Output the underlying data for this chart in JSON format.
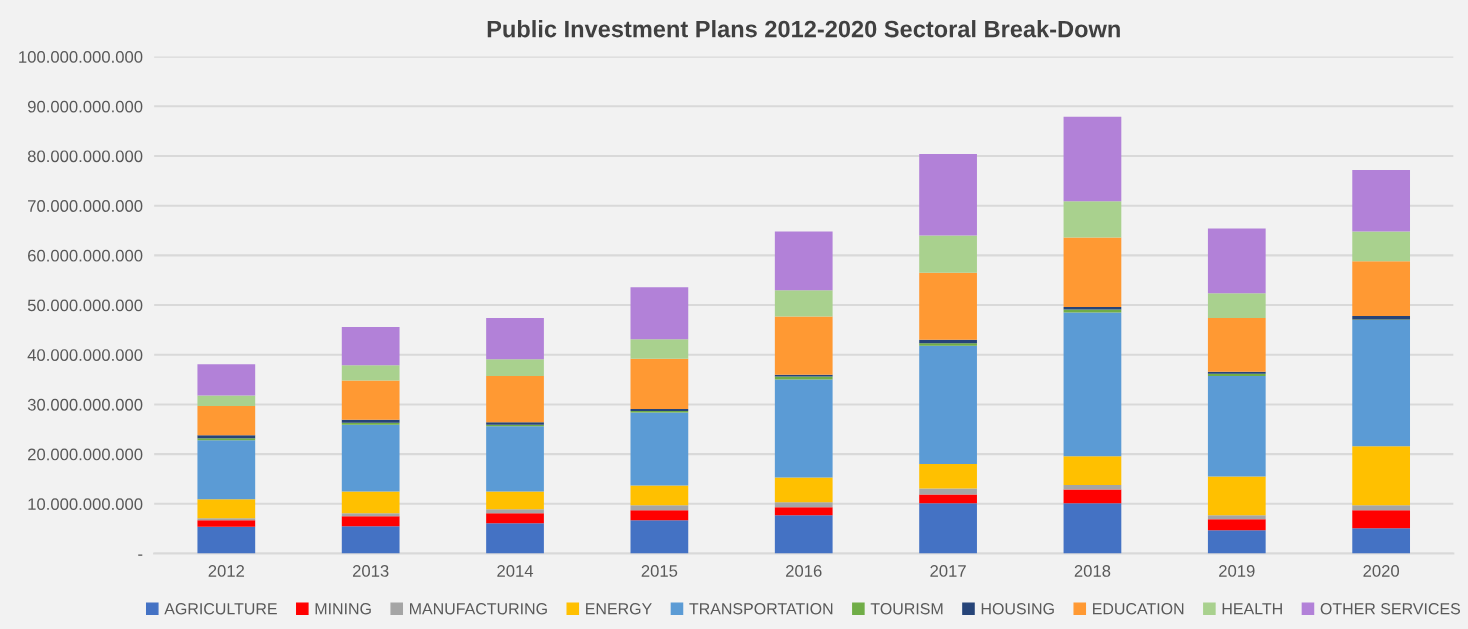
{
  "chart_data": {
    "type": "bar",
    "title": "Public Investment Plans 2012-2020 Sectoral Break-Down",
    "stacked": true,
    "grid": "y",
    "legend": "bottom",
    "categories": [
      "2012",
      "2013",
      "2014",
      "2015",
      "2016",
      "2017",
      "2018",
      "2019",
      "2020"
    ],
    "ylim": [
      0,
      100000000000
    ],
    "yticks": [
      {
        "value": 0,
        "label": "-"
      },
      {
        "value": 10000000000,
        "label": "10.000.000.000"
      },
      {
        "value": 20000000000,
        "label": "20.000.000.000"
      },
      {
        "value": 30000000000,
        "label": "30.000.000.000"
      },
      {
        "value": 40000000000,
        "label": "40.000.000.000"
      },
      {
        "value": 50000000000,
        "label": "50.000.000.000"
      },
      {
        "value": 60000000000,
        "label": "60.000.000.000"
      },
      {
        "value": 70000000000,
        "label": "70.000.000.000"
      },
      {
        "value": 80000000000,
        "label": "80.000.000.000"
      },
      {
        "value": 90000000000,
        "label": "90.000.000.000"
      },
      {
        "value": 100000000000,
        "label": "100.000.000.000"
      }
    ],
    "series": [
      {
        "name": "AGRICULTURE",
        "color": "#4472c4",
        "values": [
          5400000000,
          5500000000,
          6100000000,
          6700000000,
          7700000000,
          10100000000,
          10100000000,
          4700000000,
          5100000000
        ]
      },
      {
        "name": "MINING",
        "color": "#ff0000",
        "values": [
          1300000000,
          2000000000,
          2000000000,
          2000000000,
          1600000000,
          1800000000,
          2800000000,
          2200000000,
          3600000000
        ]
      },
      {
        "name": "MANUFACTURING",
        "color": "#a5a5a5",
        "values": [
          400000000,
          600000000,
          800000000,
          1000000000,
          1000000000,
          1200000000,
          900000000,
          800000000,
          1000000000
        ]
      },
      {
        "name": "ENERGY",
        "color": "#ffc000",
        "values": [
          3800000000,
          4400000000,
          3600000000,
          4000000000,
          5000000000,
          4900000000,
          5800000000,
          7800000000,
          11900000000
        ]
      },
      {
        "name": "TRANSPORTATION",
        "color": "#5b9bd5",
        "values": [
          11900000000,
          13400000000,
          13100000000,
          14700000000,
          19700000000,
          23800000000,
          28900000000,
          20200000000,
          25400000000
        ]
      },
      {
        "name": "TOURISM",
        "color": "#70ad47",
        "values": [
          400000000,
          400000000,
          300000000,
          300000000,
          600000000,
          500000000,
          600000000,
          500000000,
          100000000
        ]
      },
      {
        "name": "HOUSING",
        "color": "#264478",
        "values": [
          600000000,
          600000000,
          500000000,
          400000000,
          400000000,
          700000000,
          500000000,
          400000000,
          700000000
        ]
      },
      {
        "name": "EDUCATION",
        "color": "#ff9933",
        "values": [
          5900000000,
          7900000000,
          9300000000,
          10100000000,
          11700000000,
          13500000000,
          14000000000,
          10800000000,
          11000000000
        ]
      },
      {
        "name": "HEALTH",
        "color": "#a9d18e",
        "values": [
          2100000000,
          3100000000,
          3400000000,
          3900000000,
          5300000000,
          7500000000,
          7300000000,
          5000000000,
          6000000000
        ]
      },
      {
        "name": "OTHER SERVICES",
        "color": "#b281d8",
        "values": [
          6300000000,
          7700000000,
          8300000000,
          10500000000,
          11800000000,
          16400000000,
          17000000000,
          13000000000,
          12400000000
        ]
      }
    ]
  }
}
